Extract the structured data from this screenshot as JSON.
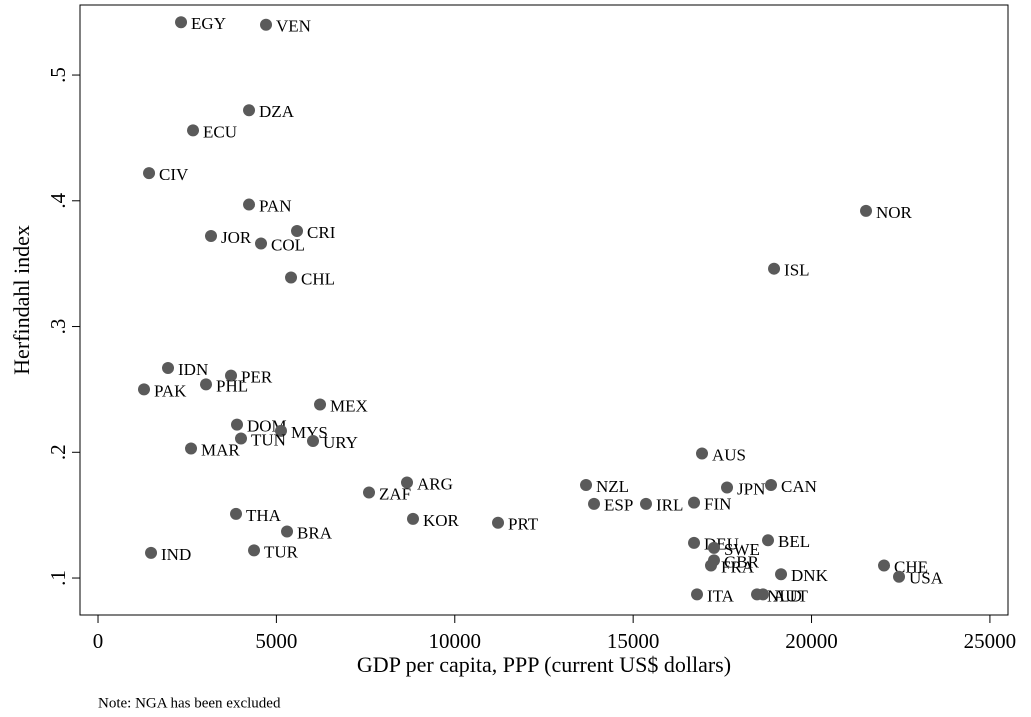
{
  "chart_data": {
    "type": "scatter",
    "x_label": "GDP per capita, PPP (current US$ dollars)",
    "y_label": "Herfindahl index",
    "note": "Note: NGA has been excluded",
    "color": "#5a5a5a",
    "labels": [
      "EGY",
      "VEN",
      "DZA",
      "ECU",
      "CIV",
      "PAN",
      "CRI",
      "JOR",
      "COL",
      "CHL",
      "NOR",
      "ISL",
      "IDN",
      "PER",
      "PHL",
      "PAK",
      "MEX",
      "DOM",
      "MYS",
      "TUN",
      "URY",
      "MAR",
      "AUS",
      "ARG",
      "ZAF",
      "NZL",
      "CAN",
      "JPN",
      "ESP",
      "IRL",
      "FIN",
      "KOR",
      "PRT",
      "THA",
      "BRA",
      "BEL",
      "DEU",
      "SWE",
      "GBR",
      "FRA",
      "IND",
      "TUR",
      "CHE",
      "USA",
      "DNK",
      "ITA",
      "NLD",
      "AUT"
    ],
    "x": [
      2327,
      4709,
      4233,
      2663,
      1430,
      4233,
      5578,
      3167,
      4569,
      5410,
      21527,
      18949,
      1962,
      3728,
      3027,
      1289,
      6223,
      3896,
      5129,
      4008,
      6026,
      2607,
      16930,
      8661,
      7596,
      13679,
      18864,
      17631,
      13903,
      15360,
      16706,
      8829,
      11212,
      3868,
      5298,
      18780,
      16706,
      17266,
      17266,
      17182,
      1486,
      4373,
      22032,
      22452,
      19145,
      16790,
      18472,
      18640
    ],
    "values": [
      0.542,
      0.54,
      0.472,
      0.456,
      0.422,
      0.397,
      0.376,
      0.372,
      0.366,
      0.339,
      0.392,
      0.346,
      0.267,
      0.261,
      0.254,
      0.25,
      0.238,
      0.222,
      0.217,
      0.211,
      0.209,
      0.203,
      0.199,
      0.176,
      0.168,
      0.174,
      0.174,
      0.172,
      0.159,
      0.159,
      0.16,
      0.147,
      0.144,
      0.151,
      0.137,
      0.13,
      0.128,
      0.124,
      0.114,
      0.11,
      0.12,
      0.122,
      0.11,
      0.101,
      0.103,
      0.087,
      0.087,
      0.087
    ],
    "xlim": [
      -505,
      25507
    ],
    "ylim": [
      0.0706,
      0.5557
    ],
    "xticks": [
      0,
      5000,
      10000,
      15000,
      20000,
      25000
    ],
    "yticks": [
      {
        "value": 0.1,
        "label": ".1"
      },
      {
        "value": 0.2,
        "label": ".2"
      },
      {
        "value": 0.3,
        "label": ".3"
      },
      {
        "value": 0.4,
        "label": ".4"
      },
      {
        "value": 0.5,
        "label": ".5"
      }
    ]
  }
}
